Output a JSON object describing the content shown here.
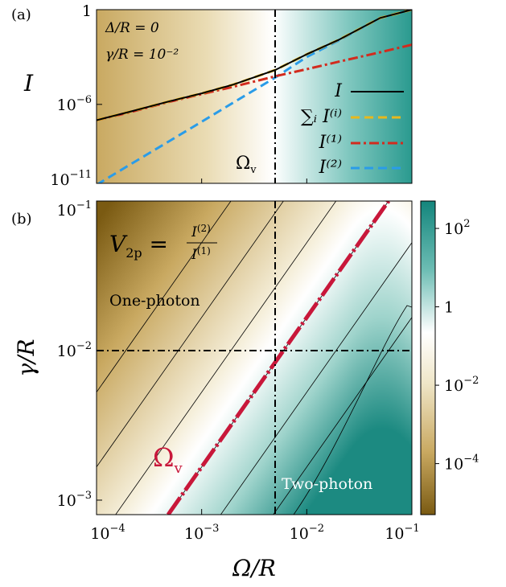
{
  "chart_data": [
    {
      "type": "line",
      "panel_label": "(a)",
      "yscale": "log",
      "xscale": "log",
      "xlim": [
        0.0001,
        0.1
      ],
      "ylim": [
        1e-11,
        1
      ],
      "ylabel": "I",
      "yticks": [
        {
          "value": 1,
          "base": "1",
          "exp": ""
        },
        {
          "value": 1e-06,
          "base": "10",
          "exp": "−6"
        },
        {
          "value": 1e-11,
          "base": "10",
          "exp": "−11"
        }
      ],
      "params": [
        "Δ/R = 0",
        "γ/R = 10⁻²"
      ],
      "vline": {
        "x": 0.005,
        "label": "Ω",
        "label_sub": "v"
      },
      "legend_placement": "bottom-right",
      "series": [
        {
          "name": "I",
          "color": "#000000",
          "style": "solid",
          "x": [
            0.0001,
            0.0002,
            0.0005,
            0.001,
            0.002,
            0.005,
            0.01,
            0.02,
            0.05,
            0.1
          ],
          "y": [
            1e-07,
            3.2e-07,
            1.6e-06,
            5e-06,
            1.8e-05,
            0.00015,
            0.0015,
            0.012,
            0.3,
            1
          ]
        },
        {
          "name": "∑ᵢ I⁽ⁱ⁾",
          "color": "#e8b81c",
          "style": "dashed",
          "x": [
            0.0001,
            0.0002,
            0.0005,
            0.001,
            0.002,
            0.005,
            0.01,
            0.02,
            0.05,
            0.1
          ],
          "y": [
            1e-07,
            3.2e-07,
            1.6e-06,
            5e-06,
            1.8e-05,
            0.00015,
            0.0015,
            0.012,
            0.3,
            1
          ]
        },
        {
          "name": "I⁽¹⁾",
          "color": "#d22b1e",
          "style": "dashdot",
          "x": [
            0.0001,
            0.0002,
            0.0005,
            0.001,
            0.002,
            0.005,
            0.01,
            0.02,
            0.05,
            0.1
          ],
          "y": [
            1e-07,
            3e-07,
            1.5e-06,
            4.5e-06,
            1.3e-05,
            6e-05,
            0.00017,
            0.0005,
            0.002,
            0.006
          ]
        },
        {
          "name": "I⁽²⁾",
          "color": "#2a9ce8",
          "style": "dashed",
          "x": [
            0.0001,
            0.0002,
            0.0005,
            0.001,
            0.002,
            0.005,
            0.01,
            0.02,
            0.05,
            0.1
          ],
          "y": [
            8e-12,
            1.3e-10,
            5e-09,
            8e-08,
            1.3e-06,
            5e-05,
            0.001,
            0.011,
            0.3,
            1
          ]
        }
      ]
    },
    {
      "type": "heatmap",
      "panel_label": "(b)",
      "xscale": "log",
      "yscale": "log",
      "xlim": [
        0.0001,
        0.1
      ],
      "ylim": [
        0.0008,
        0.1
      ],
      "xlabel": "Ω/R",
      "ylabel": "γ/R",
      "xticks": [
        {
          "value": 0.0001,
          "base": "10",
          "exp": "−4"
        },
        {
          "value": 0.001,
          "base": "10",
          "exp": "−3"
        },
        {
          "value": 0.01,
          "base": "10",
          "exp": "−2"
        },
        {
          "value": 0.1,
          "base": "10",
          "exp": "−1"
        }
      ],
      "yticks": [
        {
          "value": 0.1,
          "base": "10",
          "exp": "−1"
        },
        {
          "value": 0.01,
          "base": "10",
          "exp": "−2"
        },
        {
          "value": 0.001,
          "base": "10",
          "exp": "−3"
        }
      ],
      "colorbar": {
        "scale": "log",
        "range": [
          5e-06,
          500
        ],
        "colors": [
          "#7a5a12",
          "#c9a961",
          "#f6f0dc",
          "#ffffff",
          "#9fd4cc",
          "#13857c"
        ],
        "ticks": [
          {
            "value": 100,
            "base": "10",
            "exp": "2"
          },
          {
            "value": 1,
            "base": "1",
            "exp": ""
          },
          {
            "value": 0.01,
            "base": "10",
            "exp": "−2"
          },
          {
            "value": 0.0001,
            "base": "10",
            "exp": "−4"
          }
        ]
      },
      "quantity": {
        "lhs": "V",
        "lhs_sub": "2p",
        "num": "I",
        "num_sup": "(2)",
        "den": "I",
        "den_sup": "(1)"
      },
      "regions": {
        "one_photon": "One-photon",
        "two_photon": "Two-photon"
      },
      "crosshair": {
        "x": 0.005,
        "y": 0.01
      },
      "omega_v_line": {
        "label": "Ω",
        "label_sub": "v",
        "color": "#c8173a",
        "points": [
          [
            0.00048,
            0.0008
          ],
          [
            0.06,
            0.1
          ]
        ]
      }
    }
  ]
}
